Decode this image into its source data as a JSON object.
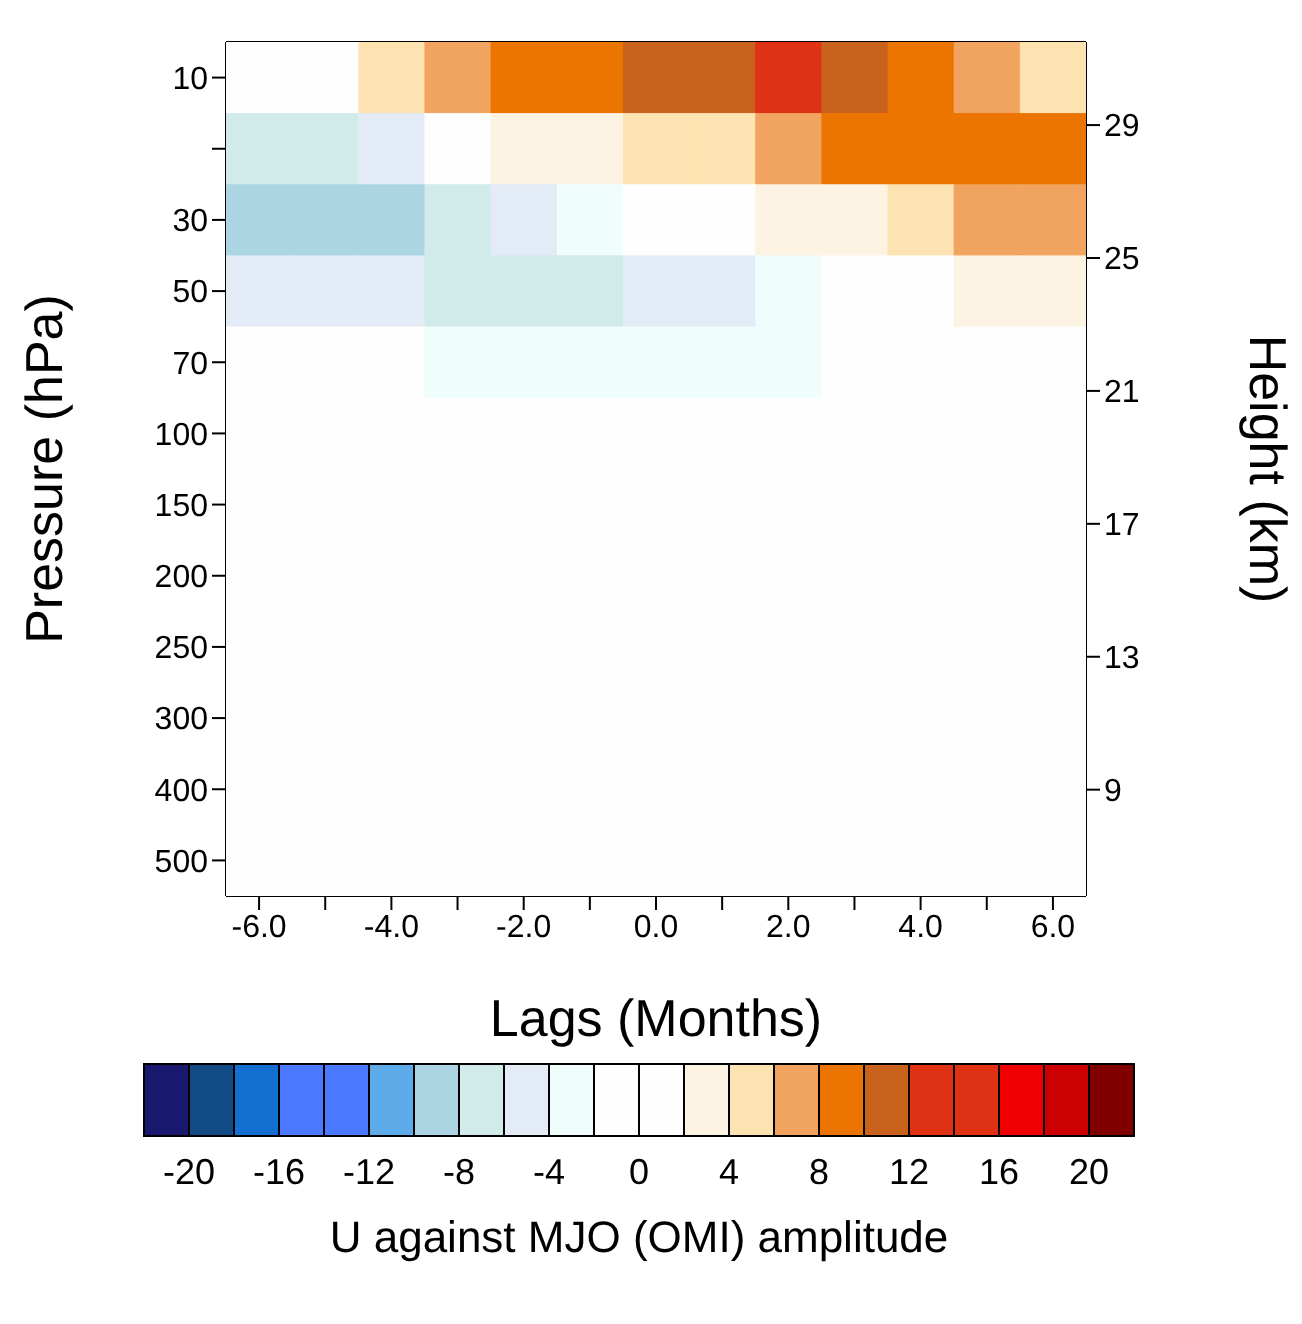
{
  "chart_data": {
    "type": "heatmap",
    "xlabel": "Lags (Months)",
    "ylabel": "Pressure (hPa)",
    "y2label": "Height (km)",
    "clabel": "U against MJO (OMI) amplitude",
    "categories": [
      "-6.0",
      null,
      "-4.0",
      null,
      "-2.0",
      null,
      "0.0",
      null,
      "2.0",
      null,
      "4.0",
      null,
      "6.0"
    ],
    "y_categories": [
      "10",
      null,
      "30",
      "50",
      "70",
      "100",
      "150",
      "200",
      "250",
      "300",
      "400",
      "500"
    ],
    "cells": [
      [
        1,
        1.8,
        4.2,
        6.2,
        8.2,
        9.5,
        10.5,
        11.5,
        12.2,
        11,
        9,
        6.8,
        5.5
      ],
      [
        -7.9,
        -6.2,
        -4.2,
        0,
        2,
        3.4,
        4.2,
        5,
        6.4,
        8.2,
        9,
        8.5,
        8.2
      ],
      [
        -9,
        -8.8,
        -8.2,
        -6.5,
        -5.8,
        -4,
        -2,
        1.2,
        2.2,
        3.6,
        5,
        6.4,
        7
      ],
      [
        -4.6,
        -5.2,
        -5.8,
        -6.2,
        -6.5,
        -6.1,
        -5,
        -4.6,
        -3,
        -2,
        1.5,
        2,
        2.8
      ],
      [
        -1.5,
        -1.7,
        -1.9,
        -2.3,
        -2.6,
        -2.8,
        -2.6,
        -3,
        -2.5,
        -2,
        0.5,
        0.8,
        1.2
      ],
      [
        -0.5,
        -0.6,
        -0.8,
        -1,
        -1.2,
        -1.3,
        -1.3,
        -1.2,
        -1,
        -0.8,
        0.3,
        0.4,
        0.5
      ],
      [
        0,
        0,
        0,
        0,
        0,
        0,
        0,
        0,
        0,
        0,
        0,
        0,
        0
      ],
      [
        0,
        0,
        0,
        0,
        0,
        0,
        0,
        0,
        0,
        0,
        0,
        0,
        0
      ],
      [
        0,
        0,
        0,
        0,
        0,
        0,
        0,
        0,
        0,
        0,
        0,
        0,
        0
      ],
      [
        0,
        0,
        0,
        0,
        0,
        0,
        0,
        0,
        0,
        0,
        0,
        0,
        0
      ],
      [
        0,
        0,
        0,
        0,
        0,
        0,
        0,
        0,
        0,
        0,
        0,
        0,
        0
      ],
      [
        0,
        0,
        0,
        0,
        0,
        0,
        0,
        0,
        0,
        0,
        0,
        0,
        0
      ]
    ],
    "clim": [
      -22,
      22
    ],
    "cticks": [
      -20,
      -16,
      -12,
      -8,
      -4,
      0,
      4,
      8,
      12,
      16,
      20
    ],
    "y2lim": [
      5.8,
      31.5
    ],
    "y2ticks": [
      29,
      25,
      21,
      17,
      13,
      9
    ]
  }
}
